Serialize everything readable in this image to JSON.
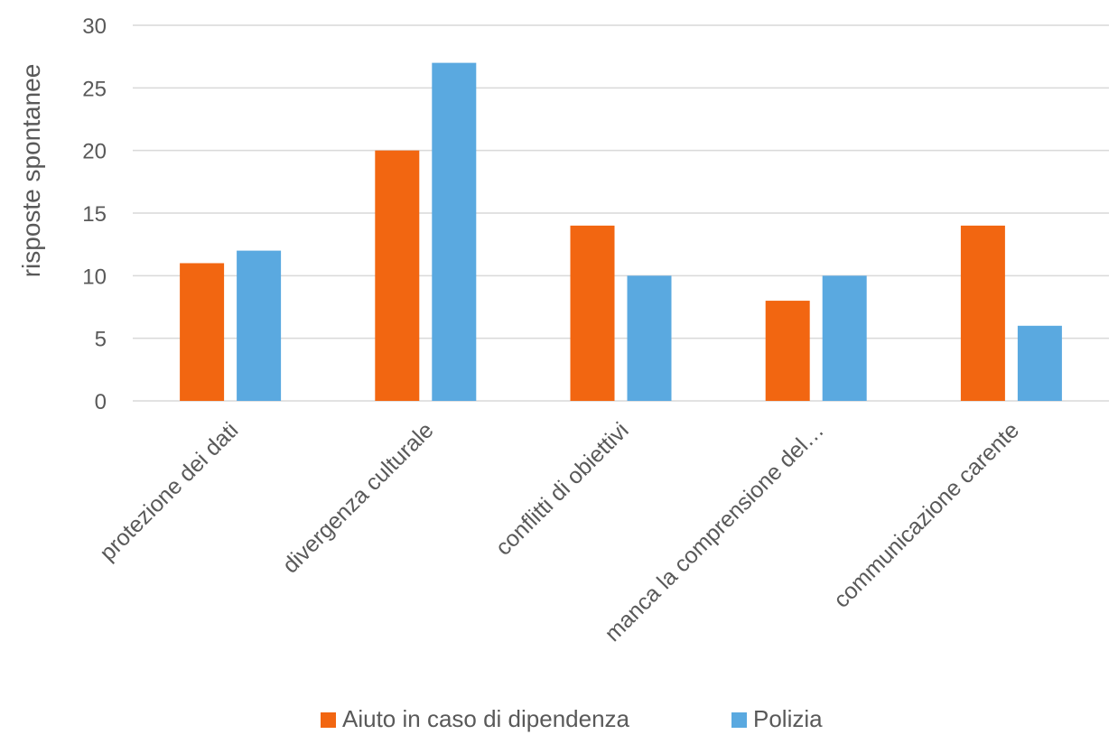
{
  "chart_data": {
    "type": "bar",
    "title": "",
    "xlabel": "",
    "ylabel": "risposte spontanee",
    "ylim": [
      0,
      30
    ],
    "yticks": [
      0,
      5,
      10,
      15,
      20,
      25,
      30
    ],
    "grid": true,
    "legend_position": "bottom",
    "categories": [
      "protezione dei dati",
      "divergenza culturale",
      "conflitti di obiettivi",
      "manca la comprensione del…",
      "communicazione carente"
    ],
    "series": [
      {
        "name": "Aiuto in caso di dipendenza",
        "color": "#f26611",
        "values": [
          11,
          20,
          14,
          8,
          14
        ]
      },
      {
        "name": "Polizia",
        "color": "#5aa9e0",
        "values": [
          12,
          27,
          10,
          10,
          6
        ]
      }
    ]
  }
}
